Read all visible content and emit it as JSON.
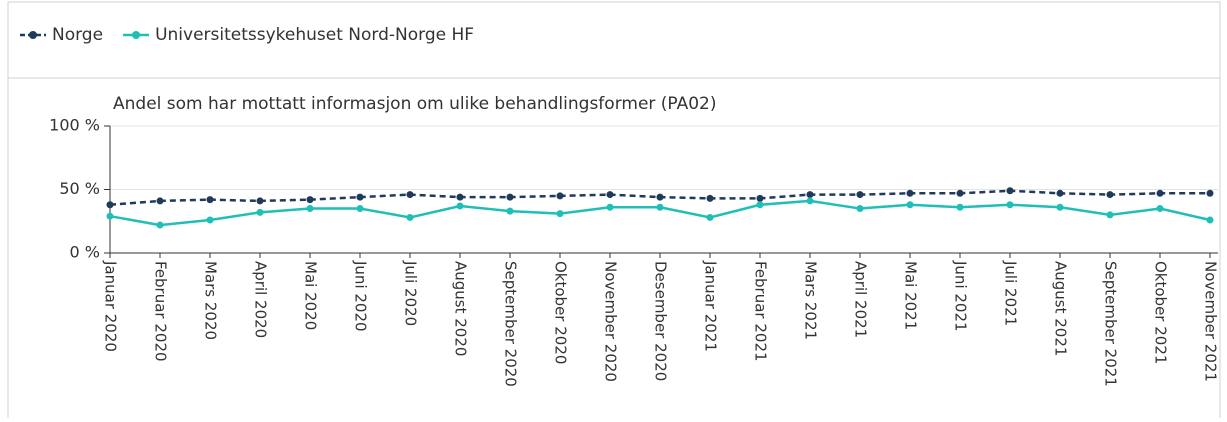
{
  "chart_data": {
    "type": "line",
    "title": "Andel som har mottatt informasjon om ulike behandlingsformer (PA02)",
    "categories": [
      "Januar 2020",
      "Februar 2020",
      "Mars 2020",
      "April 2020",
      "Mai 2020",
      "Juni 2020",
      "Juli 2020",
      "August 2020",
      "September 2020",
      "Oktober 2020",
      "November 2020",
      "Desember 2020",
      "Januar 2021",
      "Februar 2021",
      "Mars 2021",
      "April 2021",
      "Mai 2021",
      "Juni 2021",
      "Juli 2021",
      "August 2021",
      "September 2021",
      "Oktober 2021",
      "November 2021"
    ],
    "series": [
      {
        "name": "Norge",
        "color": "#1f3a5a",
        "dashed": true,
        "values": [
          38,
          41,
          42,
          41,
          42,
          44,
          46,
          44,
          44,
          45,
          46,
          44,
          43,
          43,
          46,
          46,
          47,
          47,
          49,
          47,
          46,
          47,
          47
        ]
      },
      {
        "name": "Universitetssykehuset Nord-Norge HF",
        "color": "#1fbfb8",
        "dashed": false,
        "values": [
          29,
          22,
          26,
          32,
          35,
          35,
          28,
          37,
          33,
          31,
          36,
          36,
          28,
          38,
          41,
          35,
          38,
          36,
          38,
          36,
          30,
          35,
          26
        ]
      }
    ],
    "ylim": [
      0,
      100
    ],
    "yticks": [
      {
        "value": 0,
        "label": "0 %"
      },
      {
        "value": 50,
        "label": "50 %"
      },
      {
        "value": 100,
        "label": "100 %"
      }
    ],
    "grid": true,
    "legend": "top-left"
  }
}
